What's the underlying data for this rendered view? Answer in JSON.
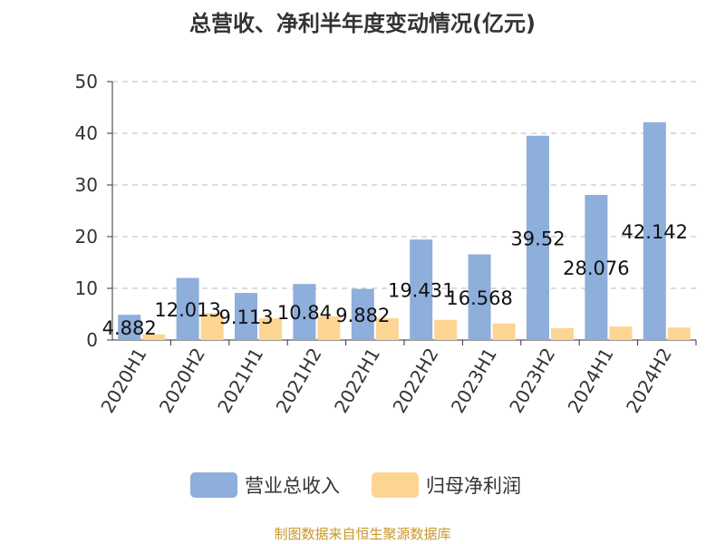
{
  "chart_data": {
    "type": "bar",
    "title": "总营收、净利半年度变动情况(亿元)",
    "categories": [
      "2020H1",
      "2020H2",
      "2021H1",
      "2021H2",
      "2022H1",
      "2022H2",
      "2023H1",
      "2023H2",
      "2024H1",
      "2024H2"
    ],
    "series": [
      {
        "name": "营业总收入",
        "color": "#8eaedc",
        "values": [
          4.882,
          12.013,
          9.113,
          10.84,
          9.882,
          19.431,
          16.568,
          39.52,
          28.076,
          42.142
        ],
        "labels": [
          "4.882",
          "12.013",
          "9.113",
          "10.84",
          "9.882",
          "19.431",
          "16.568",
          "39.52",
          "28.076",
          "42.142"
        ]
      },
      {
        "name": "归母净利润",
        "color": "#fdd592",
        "values": [
          1.1,
          5.2,
          4.2,
          4.6,
          4.2,
          3.9,
          3.2,
          2.3,
          2.6,
          2.4
        ]
      }
    ],
    "yticks": [
      0,
      10,
      20,
      30,
      40,
      50
    ],
    "ylim": [
      0,
      50
    ],
    "grid": true,
    "legend": "bottom-center"
  },
  "source": "制图数据来自恒生聚源数据库"
}
